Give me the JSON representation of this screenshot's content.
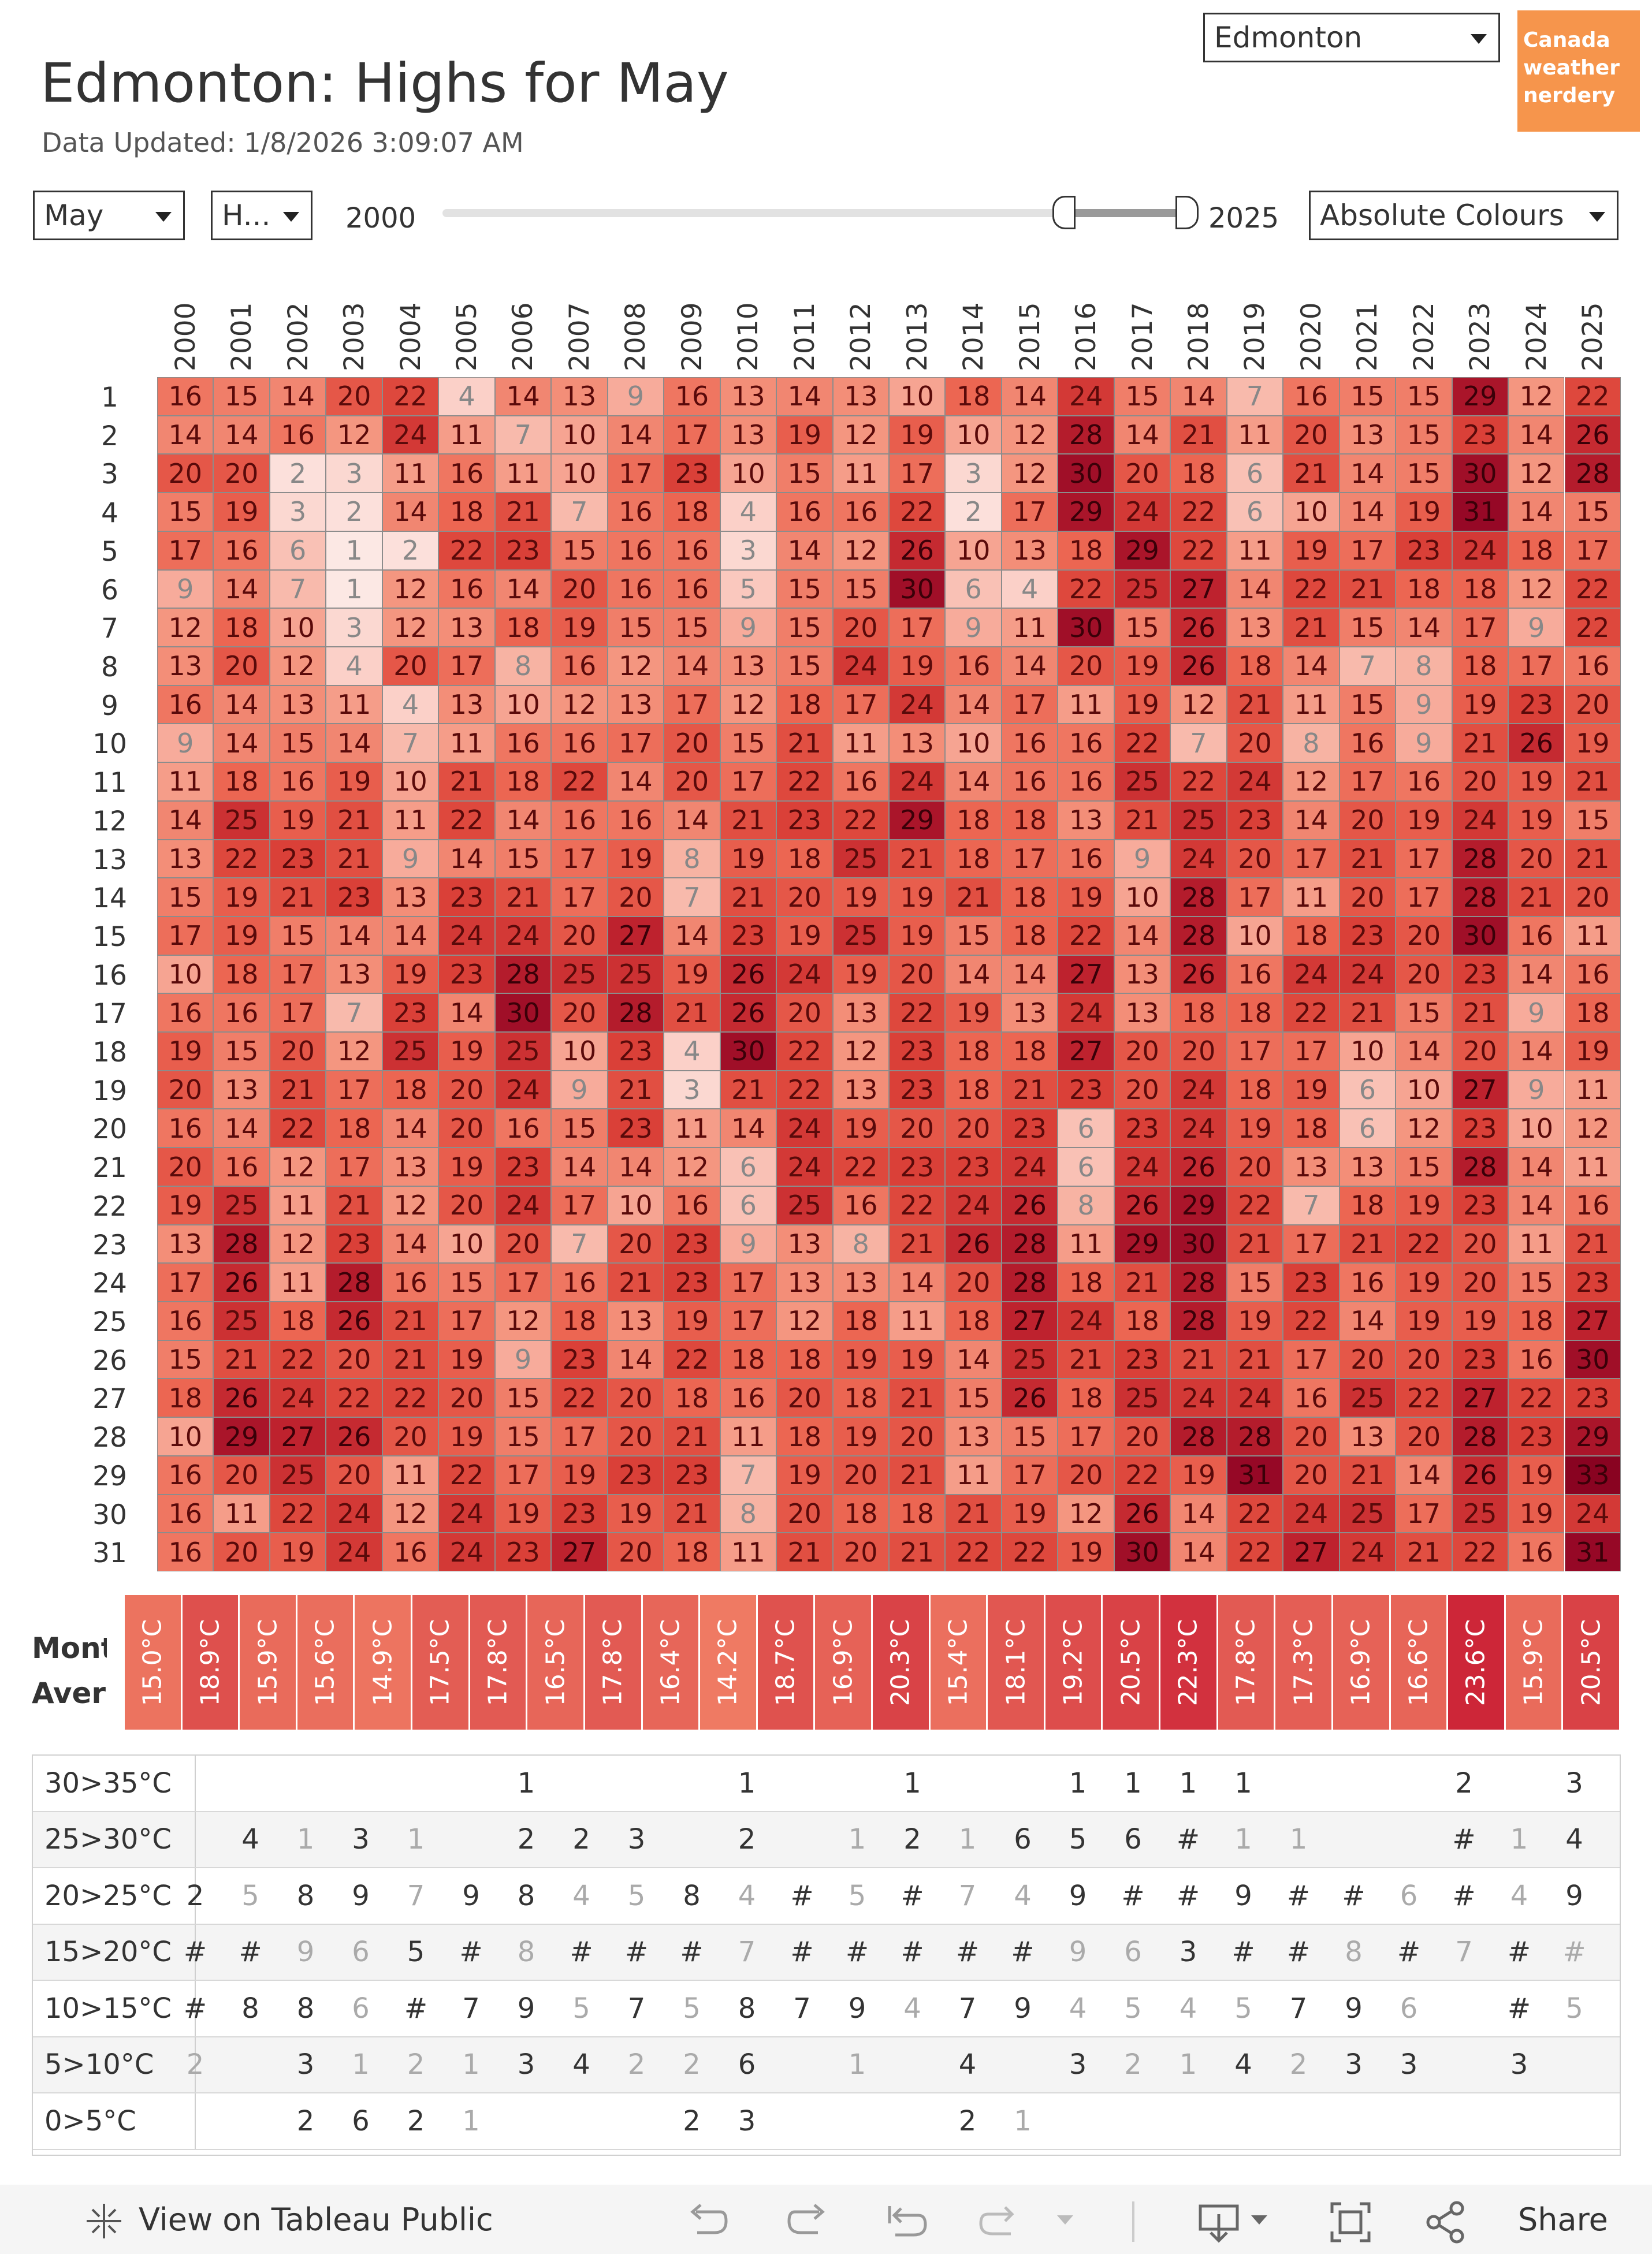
{
  "header": {
    "title": "Edmonton: Highs for May",
    "updated": "Data Updated: 1/8/2026 3:09:07 AM"
  },
  "controls": {
    "city_select": "Edmonton",
    "month_select": "May",
    "measure_select": "H...",
    "year_start": "2000",
    "year_end": "2025",
    "colour_select": "Absolute Colours"
  },
  "logo": {
    "lines": [
      "Canada",
      "weather",
      "nerdery"
    ]
  },
  "colors": {
    "accent": "#f6954c"
  },
  "chart_data": {
    "type": "heatmap",
    "years": [
      "2000",
      "2001",
      "2002",
      "2003",
      "2004",
      "2005",
      "2006",
      "2007",
      "2008",
      "2009",
      "2010",
      "2011",
      "2012",
      "2013",
      "2014",
      "2015",
      "2016",
      "2017",
      "2018",
      "2019",
      "2020",
      "2021",
      "2022",
      "2023",
      "2024",
      "2025"
    ],
    "days": [
      "1",
      "2",
      "3",
      "4",
      "5",
      "6",
      "7",
      "8",
      "9",
      "10",
      "11",
      "12",
      "13",
      "14",
      "15",
      "16",
      "17",
      "18",
      "19",
      "20",
      "21",
      "22",
      "23",
      "24",
      "25",
      "26",
      "27",
      "28",
      "29",
      "30",
      "31"
    ],
    "values": [
      [
        16,
        15,
        14,
        20,
        22,
        4,
        14,
        13,
        9,
        16,
        13,
        14,
        13,
        10,
        18,
        14,
        24,
        15,
        14,
        7,
        16,
        15,
        15,
        29,
        12,
        22
      ],
      [
        14,
        14,
        16,
        12,
        24,
        11,
        7,
        10,
        14,
        17,
        13,
        19,
        12,
        19,
        10,
        12,
        28,
        14,
        21,
        11,
        20,
        13,
        15,
        23,
        14,
        26
      ],
      [
        20,
        20,
        2,
        3,
        11,
        16,
        11,
        10,
        17,
        23,
        10,
        15,
        11,
        17,
        3,
        12,
        30,
        20,
        18,
        6,
        21,
        14,
        15,
        30,
        12,
        28
      ],
      [
        15,
        19,
        3,
        2,
        14,
        18,
        21,
        7,
        16,
        18,
        4,
        16,
        16,
        22,
        2,
        17,
        29,
        24,
        22,
        6,
        10,
        14,
        19,
        31,
        14,
        15
      ],
      [
        17,
        16,
        6,
        1,
        2,
        22,
        23,
        15,
        16,
        16,
        3,
        14,
        12,
        26,
        10,
        13,
        18,
        29,
        22,
        11,
        19,
        17,
        23,
        24,
        18,
        17
      ],
      [
        9,
        14,
        7,
        1,
        12,
        16,
        14,
        20,
        16,
        16,
        5,
        15,
        15,
        30,
        6,
        4,
        22,
        25,
        27,
        14,
        22,
        21,
        18,
        18,
        12,
        22
      ],
      [
        12,
        18,
        10,
        3,
        12,
        13,
        18,
        19,
        15,
        15,
        9,
        15,
        20,
        17,
        9,
        11,
        30,
        15,
        26,
        13,
        21,
        15,
        14,
        17,
        9,
        22
      ],
      [
        13,
        20,
        12,
        4,
        20,
        17,
        8,
        16,
        12,
        14,
        13,
        15,
        24,
        19,
        16,
        14,
        20,
        19,
        26,
        18,
        14,
        7,
        8,
        18,
        17,
        16
      ],
      [
        16,
        14,
        13,
        11,
        4,
        13,
        10,
        12,
        13,
        17,
        12,
        18,
        17,
        24,
        14,
        17,
        11,
        19,
        12,
        21,
        11,
        15,
        9,
        19,
        23,
        20
      ],
      [
        9,
        14,
        15,
        14,
        7,
        11,
        16,
        16,
        17,
        20,
        15,
        21,
        11,
        13,
        10,
        16,
        16,
        22,
        7,
        20,
        8,
        16,
        9,
        21,
        26,
        19
      ],
      [
        11,
        18,
        16,
        19,
        10,
        21,
        18,
        22,
        14,
        20,
        17,
        22,
        16,
        24,
        14,
        16,
        16,
        25,
        22,
        24,
        12,
        17,
        16,
        20,
        19,
        21
      ],
      [
        14,
        25,
        19,
        21,
        11,
        22,
        14,
        16,
        16,
        14,
        21,
        23,
        22,
        29,
        18,
        18,
        13,
        21,
        25,
        23,
        14,
        20,
        19,
        24,
        19,
        15
      ],
      [
        13,
        22,
        23,
        21,
        9,
        14,
        15,
        17,
        19,
        8,
        19,
        18,
        25,
        21,
        18,
        17,
        16,
        9,
        24,
        20,
        17,
        21,
        17,
        28,
        20,
        21
      ],
      [
        15,
        19,
        21,
        23,
        13,
        23,
        21,
        17,
        20,
        7,
        21,
        20,
        19,
        19,
        21,
        18,
        19,
        10,
        28,
        17,
        11,
        20,
        17,
        28,
        21,
        20
      ],
      [
        17,
        19,
        15,
        14,
        14,
        24,
        24,
        20,
        27,
        14,
        23,
        19,
        25,
        19,
        15,
        18,
        22,
        14,
        28,
        10,
        18,
        23,
        20,
        30,
        16,
        11
      ],
      [
        10,
        18,
        17,
        13,
        19,
        23,
        28,
        25,
        25,
        19,
        26,
        24,
        19,
        20,
        14,
        14,
        27,
        13,
        26,
        16,
        24,
        24,
        20,
        23,
        14,
        16
      ],
      [
        16,
        16,
        17,
        7,
        23,
        14,
        30,
        20,
        28,
        21,
        26,
        20,
        13,
        22,
        19,
        13,
        24,
        13,
        18,
        18,
        22,
        21,
        15,
        21,
        9,
        18
      ],
      [
        19,
        15,
        20,
        12,
        25,
        19,
        25,
        10,
        23,
        4,
        30,
        22,
        12,
        23,
        18,
        18,
        27,
        20,
        20,
        17,
        17,
        10,
        14,
        20,
        14,
        19
      ],
      [
        20,
        13,
        21,
        17,
        18,
        20,
        24,
        9,
        21,
        3,
        21,
        22,
        13,
        23,
        18,
        21,
        23,
        20,
        24,
        18,
        19,
        6,
        10,
        27,
        9,
        11
      ],
      [
        16,
        14,
        22,
        18,
        14,
        20,
        16,
        15,
        23,
        11,
        14,
        24,
        19,
        20,
        20,
        23,
        6,
        23,
        24,
        19,
        18,
        6,
        12,
        23,
        10,
        12
      ],
      [
        20,
        16,
        12,
        17,
        13,
        19,
        23,
        14,
        14,
        12,
        6,
        24,
        22,
        23,
        23,
        24,
        6,
        24,
        26,
        20,
        13,
        13,
        15,
        28,
        14,
        11
      ],
      [
        19,
        25,
        11,
        21,
        12,
        20,
        24,
        17,
        10,
        16,
        6,
        25,
        16,
        22,
        24,
        26,
        8,
        26,
        29,
        22,
        7,
        18,
        19,
        23,
        14,
        16
      ],
      [
        13,
        28,
        12,
        23,
        14,
        10,
        20,
        7,
        20,
        23,
        9,
        13,
        8,
        21,
        26,
        28,
        11,
        29,
        30,
        21,
        17,
        21,
        22,
        20,
        11,
        21
      ],
      [
        17,
        26,
        11,
        28,
        16,
        15,
        17,
        16,
        21,
        23,
        17,
        13,
        13,
        14,
        20,
        28,
        18,
        21,
        28,
        15,
        23,
        16,
        19,
        20,
        15,
        23
      ],
      [
        16,
        25,
        18,
        26,
        21,
        17,
        12,
        18,
        13,
        19,
        17,
        12,
        18,
        11,
        18,
        27,
        24,
        18,
        28,
        19,
        22,
        14,
        19,
        19,
        18,
        27
      ],
      [
        15,
        21,
        22,
        20,
        21,
        19,
        9,
        23,
        14,
        22,
        18,
        18,
        19,
        19,
        14,
        25,
        21,
        23,
        21,
        21,
        17,
        20,
        20,
        23,
        16,
        30
      ],
      [
        18,
        26,
        24,
        22,
        22,
        20,
        15,
        22,
        20,
        18,
        16,
        20,
        18,
        21,
        15,
        26,
        18,
        25,
        24,
        24,
        16,
        25,
        22,
        27,
        22,
        23
      ],
      [
        10,
        29,
        27,
        26,
        20,
        19,
        15,
        17,
        20,
        21,
        11,
        18,
        19,
        20,
        13,
        15,
        17,
        20,
        28,
        28,
        20,
        13,
        20,
        28,
        23,
        29
      ],
      [
        16,
        20,
        25,
        20,
        11,
        22,
        17,
        19,
        23,
        23,
        7,
        19,
        20,
        21,
        11,
        17,
        20,
        22,
        19,
        31,
        20,
        21,
        14,
        26,
        19,
        33
      ],
      [
        16,
        11,
        22,
        24,
        12,
        24,
        19,
        23,
        19,
        21,
        8,
        20,
        18,
        18,
        21,
        19,
        12,
        26,
        14,
        22,
        24,
        25,
        17,
        25,
        19,
        24
      ],
      [
        16,
        20,
        19,
        24,
        16,
        24,
        23,
        27,
        20,
        18,
        11,
        21,
        20,
        21,
        22,
        22,
        19,
        30,
        14,
        22,
        27,
        24,
        21,
        22,
        16,
        31
      ]
    ],
    "monthly_average_label": "Monthly Average",
    "monthly_average": [
      "15.0°C",
      "18.9°C",
      "15.9°C",
      "15.6°C",
      "14.9°C",
      "17.5°C",
      "17.8°C",
      "16.5°C",
      "17.8°C",
      "16.4°C",
      "14.2°C",
      "18.7°C",
      "16.9°C",
      "20.3°C",
      "15.4°C",
      "18.1°C",
      "19.2°C",
      "20.5°C",
      "22.3°C",
      "17.8°C",
      "17.3°C",
      "16.9°C",
      "16.6°C",
      "23.6°C",
      "15.9°C",
      "20.5°C"
    ],
    "monthly_average_values": [
      15.0,
      18.9,
      15.9,
      15.6,
      14.9,
      17.5,
      17.8,
      16.5,
      17.8,
      16.4,
      14.2,
      18.7,
      16.9,
      20.3,
      15.4,
      18.1,
      19.2,
      20.5,
      22.3,
      17.8,
      17.3,
      16.9,
      16.6,
      23.6,
      15.9,
      20.5
    ],
    "bins": [
      {
        "label": "30>35°C",
        "counts": [
          "",
          "",
          "",
          "",
          "",
          "",
          "1",
          "",
          "",
          "",
          "1",
          "",
          "",
          "1",
          "",
          "",
          "1",
          "1",
          "1",
          "1",
          "",
          "",
          "",
          "2",
          "",
          "3"
        ],
        "shade": [
          0,
          0,
          0,
          0,
          0,
          0,
          2,
          0,
          0,
          0,
          2,
          0,
          0,
          2,
          0,
          0,
          2,
          2,
          2,
          2,
          0,
          0,
          0,
          2,
          0,
          2
        ]
      },
      {
        "label": "25>30°C",
        "counts": [
          "",
          "4",
          "1",
          "3",
          "1",
          "",
          "2",
          "2",
          "3",
          "",
          "2",
          "",
          "1",
          "2",
          "1",
          "6",
          "5",
          "6",
          "#",
          "1",
          "1",
          "",
          "",
          "#",
          "1",
          "4"
        ],
        "shade": [
          0,
          2,
          1,
          2,
          1,
          0,
          2,
          2,
          2,
          0,
          2,
          0,
          1,
          2,
          1,
          2,
          2,
          2,
          2,
          1,
          1,
          0,
          0,
          2,
          1,
          2
        ]
      },
      {
        "label": "20>25°C",
        "counts": [
          "2",
          "5",
          "8",
          "9",
          "7",
          "9",
          "8",
          "4",
          "5",
          "8",
          "4",
          "#",
          "5",
          "#",
          "7",
          "4",
          "9",
          "#",
          "#",
          "9",
          "#",
          "#",
          "6",
          "#",
          "4",
          "9"
        ],
        "shade": [
          0,
          1,
          2,
          2,
          1,
          2,
          2,
          1,
          1,
          2,
          1,
          2,
          1,
          2,
          1,
          1,
          2,
          2,
          2,
          2,
          2,
          2,
          1,
          2,
          1,
          2
        ]
      },
      {
        "label": "15>20°C",
        "counts": [
          "#",
          "#",
          "9",
          "6",
          "5",
          "#",
          "8",
          "#",
          "#",
          "#",
          "7",
          "#",
          "#",
          "#",
          "#",
          "#",
          "9",
          "6",
          "3",
          "#",
          "#",
          "8",
          "#",
          "7",
          "#",
          "#"
        ],
        "shade": [
          2,
          2,
          1,
          1,
          0,
          2,
          1,
          2,
          2,
          2,
          1,
          2,
          2,
          2,
          2,
          2,
          1,
          1,
          0,
          2,
          2,
          1,
          2,
          1,
          2,
          1
        ]
      },
      {
        "label": "10>15°C",
        "counts": [
          "#",
          "8",
          "8",
          "6",
          "#",
          "7",
          "9",
          "5",
          "7",
          "5",
          "8",
          "7",
          "9",
          "4",
          "7",
          "9",
          "4",
          "5",
          "4",
          "5",
          "7",
          "9",
          "6",
          "",
          "#",
          "5"
        ],
        "shade": [
          2,
          2,
          2,
          1,
          2,
          2,
          2,
          1,
          2,
          1,
          2,
          2,
          2,
          1,
          2,
          2,
          1,
          1,
          1,
          1,
          2,
          2,
          1,
          0,
          2,
          1
        ]
      },
      {
        "label": "5>10°C",
        "counts": [
          "2",
          "",
          "3",
          "1",
          "2",
          "1",
          "3",
          "4",
          "2",
          "2",
          "6",
          "",
          "1",
          "",
          "4",
          "",
          "3",
          "2",
          "1",
          "4",
          "2",
          "3",
          "3",
          "",
          "3",
          ""
        ],
        "shade": [
          1,
          0,
          2,
          1,
          1,
          1,
          2,
          2,
          1,
          1,
          2,
          0,
          1,
          0,
          2,
          0,
          2,
          1,
          1,
          2,
          1,
          2,
          2,
          0,
          2,
          0
        ]
      },
      {
        "label": "0>5°C",
        "counts": [
          "",
          "",
          "2",
          "6",
          "2",
          "1",
          "",
          "",
          "",
          "2",
          "3",
          "",
          "",
          "",
          "2",
          "1",
          "",
          "",
          "",
          "",
          "",
          "",
          "",
          "",
          "",
          ""
        ],
        "shade": [
          0,
          0,
          2,
          2,
          2,
          1,
          0,
          0,
          0,
          2,
          2,
          0,
          0,
          0,
          2,
          1,
          0,
          0,
          0,
          0,
          0,
          0,
          0,
          0,
          0,
          0
        ]
      }
    ]
  },
  "footer": {
    "tableau_label": "View on Tableau Public",
    "share_label": "Share"
  }
}
